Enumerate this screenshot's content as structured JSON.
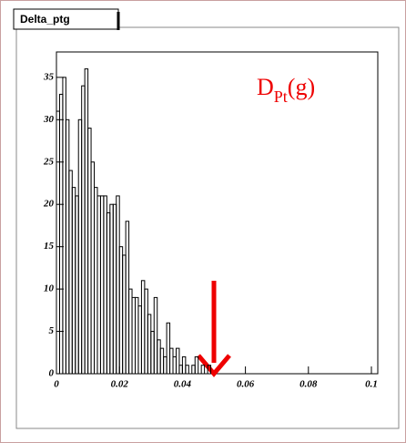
{
  "chart_data": {
    "type": "histogram",
    "title": "Delta_ptg",
    "annotation": {
      "main": "D",
      "sub": "Pt",
      "tail": "(g)"
    },
    "bins": [
      0,
      0.001,
      0.002,
      0.003,
      0.004,
      0.005,
      0.006,
      0.007,
      0.008,
      0.009,
      0.01,
      0.011,
      0.012,
      0.013,
      0.014,
      0.015,
      0.016,
      0.017,
      0.018,
      0.019,
      0.02,
      0.021,
      0.022,
      0.023,
      0.024,
      0.025,
      0.026,
      0.027,
      0.028,
      0.029,
      0.03,
      0.031,
      0.032,
      0.033,
      0.034,
      0.035,
      0.036,
      0.037,
      0.038,
      0.039,
      0.04,
      0.041,
      0.042,
      0.043,
      0.044,
      0.045,
      0.046,
      0.047,
      0.048,
      0.049,
      0.05
    ],
    "values": [
      31,
      33,
      35,
      30,
      24,
      22,
      21,
      30,
      34,
      36,
      29,
      25,
      22,
      21,
      21,
      21,
      19,
      20,
      20,
      21,
      15,
      14,
      18,
      10,
      9,
      9,
      8,
      11,
      10,
      7,
      5,
      9,
      4,
      3,
      2,
      6,
      3,
      2,
      3,
      1,
      2,
      1,
      0,
      1,
      2,
      0,
      1,
      0,
      1,
      0
    ],
    "color": "#000000",
    "xlim": [
      0,
      0.1
    ],
    "xticks": [
      0,
      0.02,
      0.04,
      0.06,
      0.08,
      0.1
    ],
    "ylim": [
      0,
      38
    ],
    "yticks": [
      0,
      5,
      10,
      15,
      20,
      25,
      30,
      35
    ]
  }
}
